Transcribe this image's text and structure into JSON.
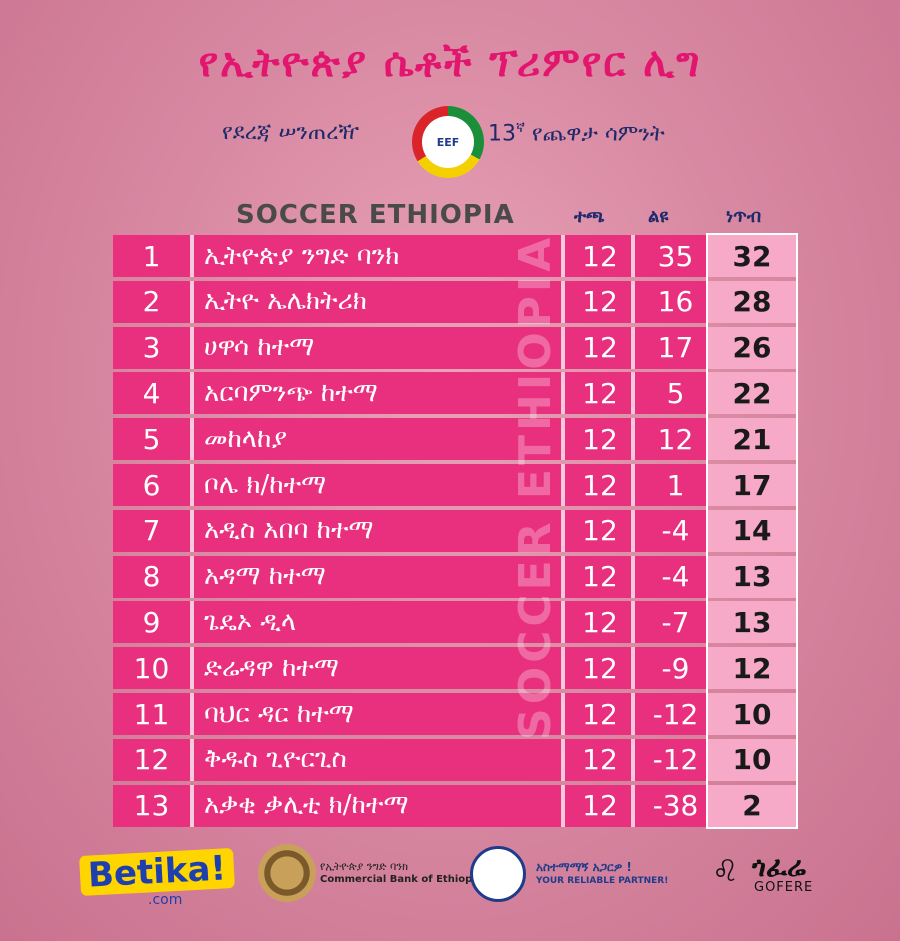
{
  "header": {
    "title": "የኢትዮጵያ ሴቶች ፕሪምየር ሊግ",
    "subtitle_left": "የደረጃ ሠንጠረዥ",
    "week_number": "13",
    "week_suffix": "ኛ",
    "subtitle_right": "የጨዋታ ሳምንት",
    "federation_logo_text": "EEF",
    "brand": "SOCCER ETHIOPIA"
  },
  "columns": {
    "played": "ተጫ",
    "gd": "ልዩ",
    "points": "ነጥብ"
  },
  "watermark": "SOCCER ETHIOPIA",
  "standings": [
    {
      "rank": "1",
      "team": "ኢትዮጵያ ንግድ ባንክ",
      "played": "12",
      "gd": "35",
      "points": "32"
    },
    {
      "rank": "2",
      "team": "ኢትዮ ኤሌክትሪክ",
      "played": "12",
      "gd": "16",
      "points": "28"
    },
    {
      "rank": "3",
      "team": "ሀዋሳ ከተማ",
      "played": "12",
      "gd": "17",
      "points": "26"
    },
    {
      "rank": "4",
      "team": "አርባምንጭ ከተማ",
      "played": "12",
      "gd": "5",
      "points": "22"
    },
    {
      "rank": "5",
      "team": "መከላከያ",
      "played": "12",
      "gd": "12",
      "points": "21"
    },
    {
      "rank": "6",
      "team": "ቦሌ ክ/ከተማ",
      "played": "12",
      "gd": "1",
      "points": "17"
    },
    {
      "rank": "7",
      "team": "አዲስ አበባ ከተማ",
      "played": "12",
      "gd": "-4",
      "points": "14"
    },
    {
      "rank": "8",
      "team": "አዳማ ከተማ",
      "played": "12",
      "gd": "-4",
      "points": "13"
    },
    {
      "rank": "9",
      "team": "ጌዴኦ ዲላ",
      "played": "12",
      "gd": "-7",
      "points": "13"
    },
    {
      "rank": "10",
      "team": "ድሬዳዋ ከተማ",
      "played": "12",
      "gd": "-9",
      "points": "12"
    },
    {
      "rank": "11",
      "team": "ባህር ዳር ከተማ",
      "played": "12",
      "gd": "-12",
      "points": "10"
    },
    {
      "rank": "12",
      "team": "ቅዱስ ጊዮርጊስ",
      "played": "12",
      "gd": "-12",
      "points": "10"
    },
    {
      "rank": "13",
      "team": "አቃቂ ቃሊቲ ክ/ከተማ",
      "played": "12",
      "gd": "-38",
      "points": "2"
    }
  ],
  "sponsors": {
    "betika": "Betika!",
    "betika_sub": ".com",
    "cbe_amharic": "የኢትዮጵያ ንግድ ባንክ",
    "cbe_english": "Commercial Bank of Ethiopia",
    "insurance_amharic": "አስተማማኝ አጋርዎ !",
    "insurance_english": "YOUR RELIABLE PARTNER!",
    "gofere_amharic": "ጎፈሬ",
    "gofere_english": "GOFERE"
  }
}
